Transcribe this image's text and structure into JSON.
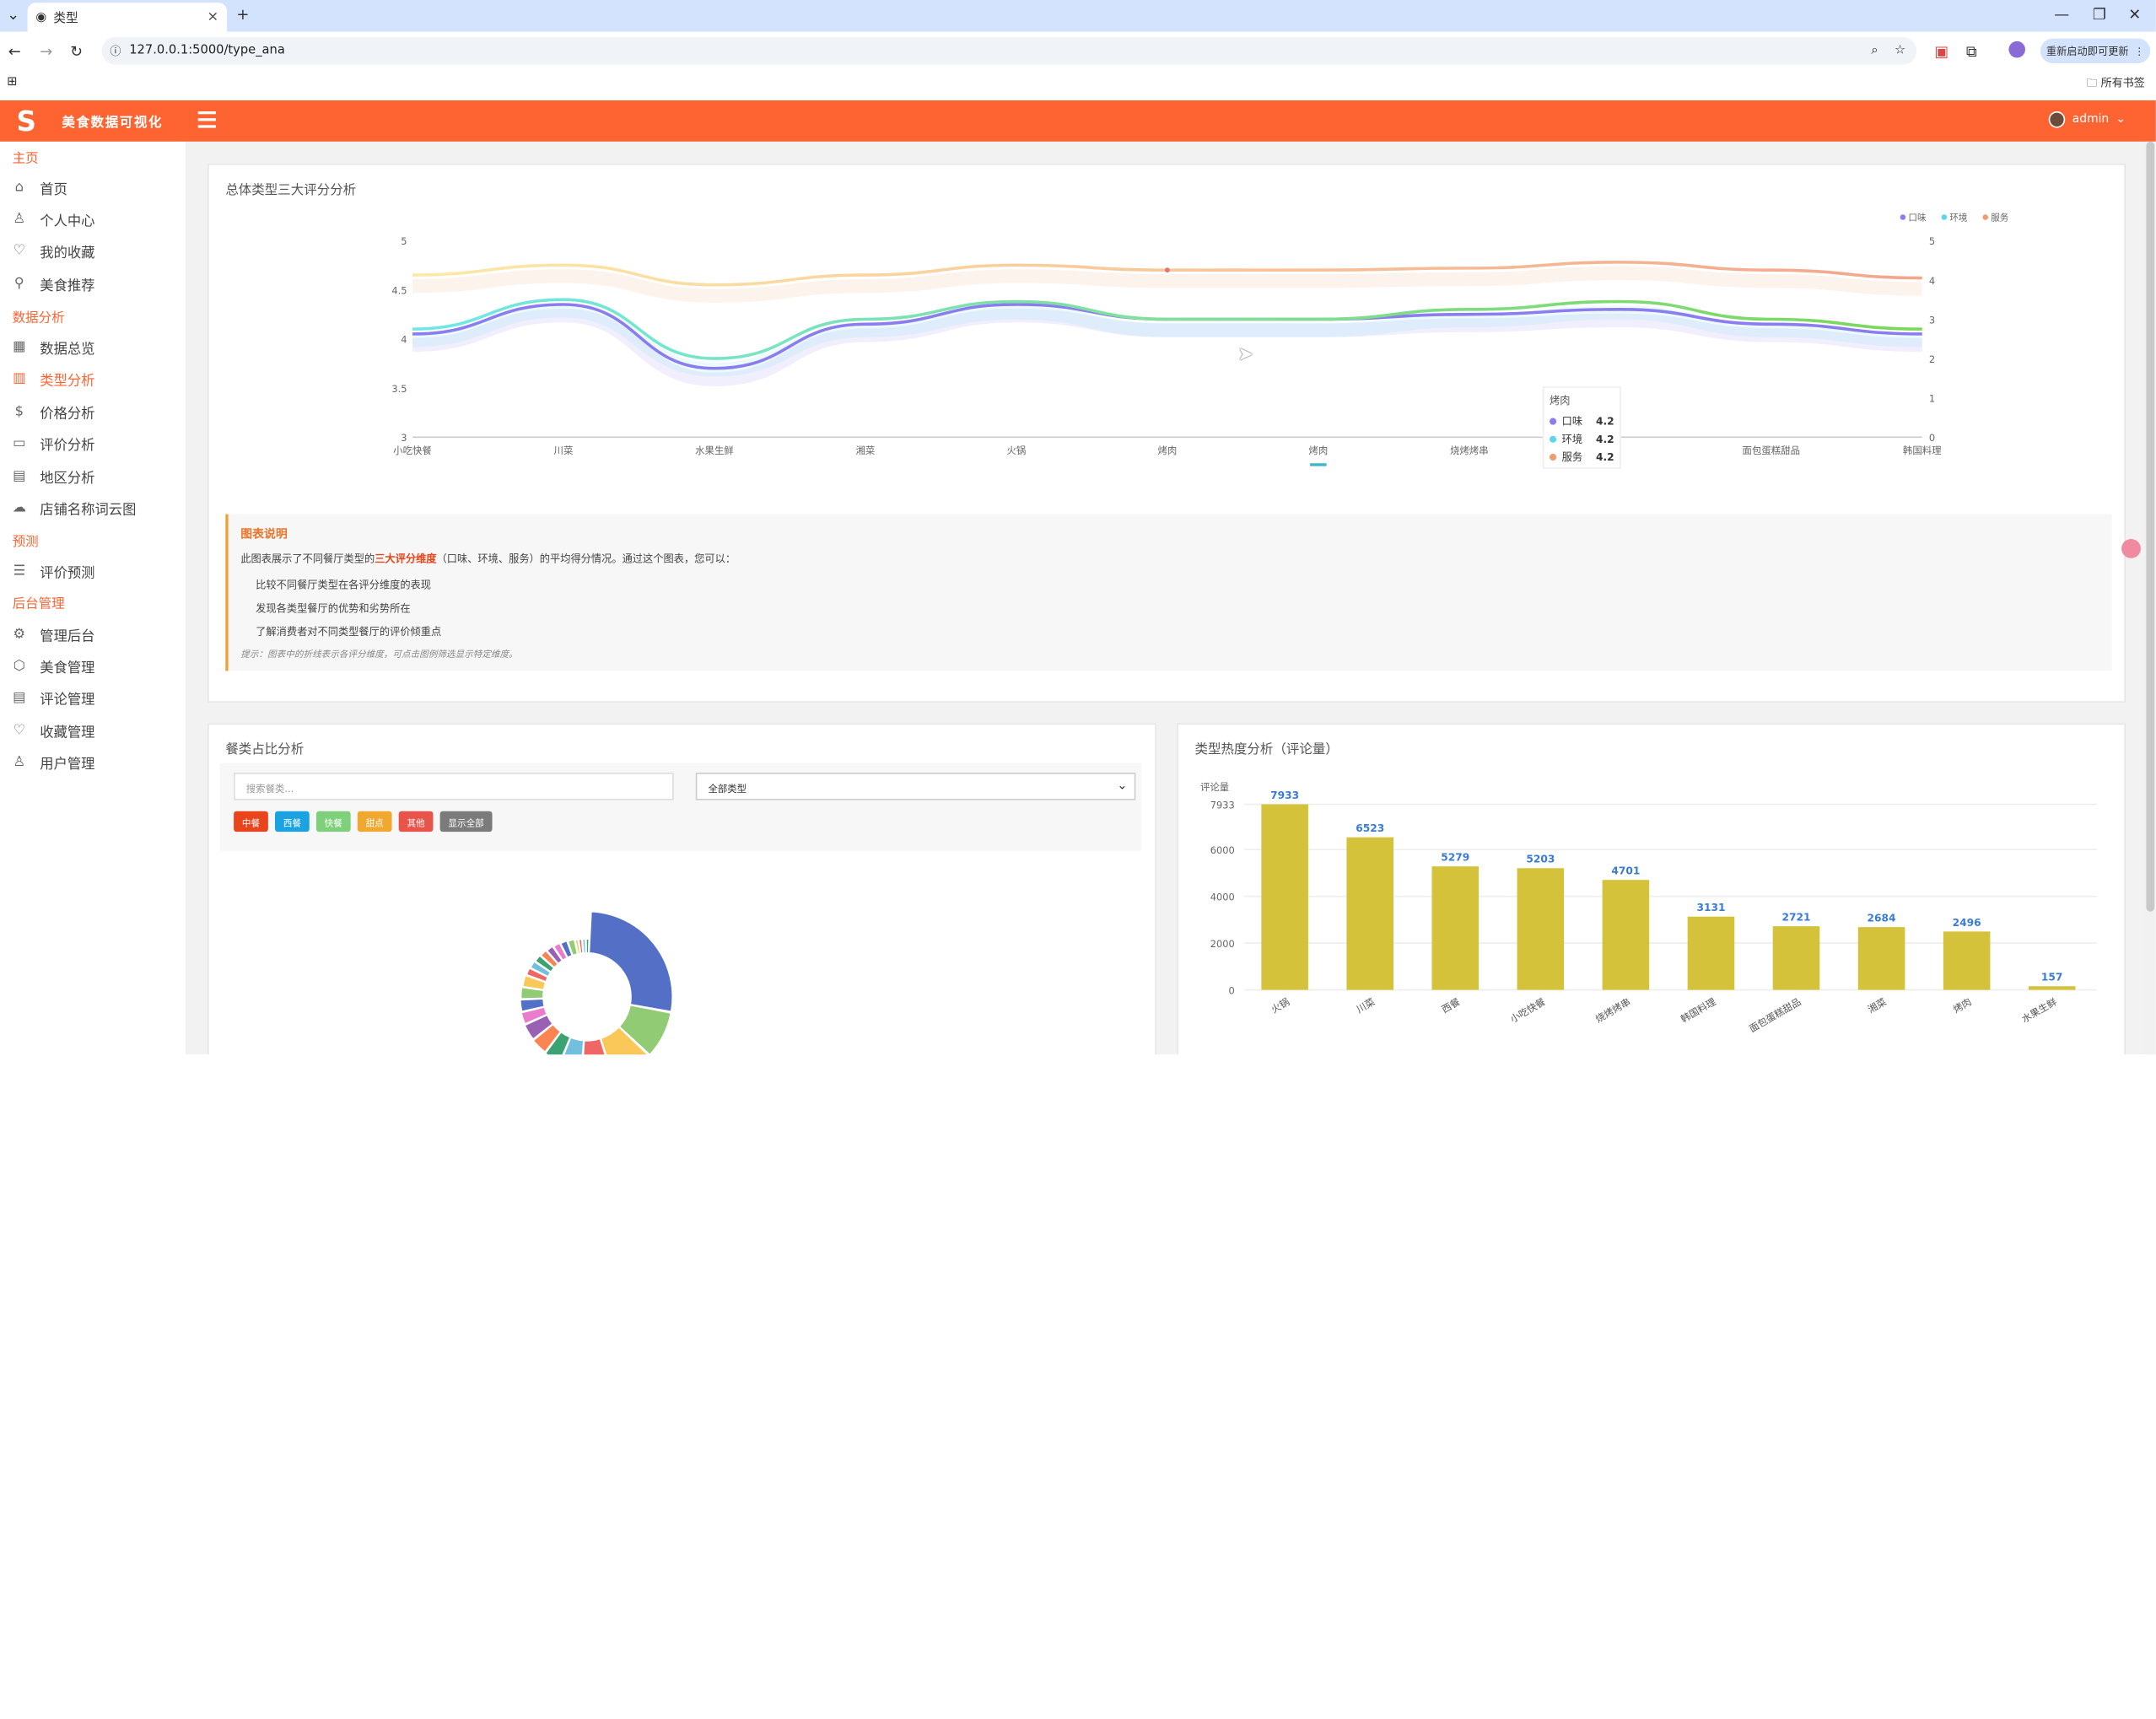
{
  "browser": {
    "tab_title": "类型",
    "url": "127.0.0.1:5000/type_ana",
    "update_btn": "重新启动即可更新",
    "bookmarks": "所有书签"
  },
  "header": {
    "brand": "美食数据可视化",
    "user": "admin"
  },
  "sidebar": {
    "sections": [
      {
        "title": "主页",
        "items": [
          {
            "label": "首页",
            "icon": "home-icon"
          },
          {
            "label": "个人中心",
            "icon": "user-icon"
          },
          {
            "label": "我的收藏",
            "icon": "heart-icon"
          },
          {
            "label": "美食推荐",
            "icon": "bulb-icon"
          }
        ]
      },
      {
        "title": "数据分析",
        "items": [
          {
            "label": "数据总览",
            "icon": "table-icon"
          },
          {
            "label": "类型分析",
            "icon": "chart-icon",
            "active": true
          },
          {
            "label": "价格分析",
            "icon": "dollar-icon"
          },
          {
            "label": "评价分析",
            "icon": "comment-icon"
          },
          {
            "label": "地区分析",
            "icon": "map-icon"
          },
          {
            "label": "店铺名称词云图",
            "icon": "cloud-icon"
          }
        ]
      },
      {
        "title": "预测",
        "items": [
          {
            "label": "评价预测",
            "icon": "list-icon"
          }
        ]
      },
      {
        "title": "后台管理",
        "items": [
          {
            "label": "管理后台",
            "icon": "gear-icon"
          },
          {
            "label": "美食管理",
            "icon": "box-icon"
          },
          {
            "label": "评论管理",
            "icon": "chat-icon"
          },
          {
            "label": "收藏管理",
            "icon": "heart-pulse-icon"
          },
          {
            "label": "用户管理",
            "icon": "person-icon"
          }
        ]
      }
    ]
  },
  "score_card": {
    "title": "总体类型三大评分分析",
    "tooltip": {
      "title": "烤肉",
      "rows": [
        {
          "name": "口味",
          "value": "4.2",
          "color": "#8b7cf0"
        },
        {
          "name": "环境",
          "value": "4.2",
          "color": "#5cd6f0"
        },
        {
          "name": "服务",
          "value": "4.2",
          "color": "#f29b6b"
        }
      ]
    },
    "note": {
      "title": "图表说明",
      "lead": "此图表展示了不同餐厅类型的",
      "lead_bold": "三大评分维度",
      "lead_tail": "（口味、环境、服务）的平均得分情况。通过这个图表，您可以：",
      "items": [
        "比较不同餐厅类型在各评分维度的表现",
        "发现各类型餐厅的优势和劣势所在",
        "了解消费者对不同类型餐厅的评价倾重点"
      ],
      "hint": "提示：图表中的折线表示各评分维度，可点击图例筛选显示特定维度。"
    }
  },
  "share_card": {
    "title": "餐类占比分析",
    "search_placeholder": "搜索餐类...",
    "select_value": "全部类型",
    "filters": [
      {
        "label": "中餐",
        "color": "#e8451c"
      },
      {
        "label": "西餐",
        "color": "#1aa3e0"
      },
      {
        "label": "快餐",
        "color": "#7ed07a"
      },
      {
        "label": "甜点",
        "color": "#f0a830"
      },
      {
        "label": "其他",
        "color": "#e8534a"
      },
      {
        "label": "显示全部",
        "color": "#7b7b7b"
      }
    ]
  },
  "heat_card": {
    "title": "类型热度分析（评论量）"
  },
  "chart_data": [
    {
      "type": "line",
      "categories": [
        "小吃快餐",
        "川菜",
        "水果生鲜",
        "湘菜",
        "火锅",
        "烤肉",
        "烤肉",
        "烧烤烤串",
        "",
        "面包蛋糕甜品",
        "韩国料理"
      ],
      "visible_tick_labels": [
        "小吃快餐",
        "川菜",
        "水果生鲜",
        "湘菜",
        "火锅",
        "烤肉",
        "烤肉",
        "烧烤烤串",
        "面包蛋糕甜品",
        "韩国料理"
      ],
      "series": [
        {
          "name": "口味",
          "color": "#8b7cf0",
          "values": [
            4.05,
            4.35,
            3.7,
            4.15,
            4.35,
            4.2,
            4.2,
            4.25,
            4.3,
            4.15,
            4.05
          ]
        },
        {
          "name": "环境",
          "color": "#5cd6f0",
          "values": [
            4.1,
            4.4,
            3.8,
            4.2,
            4.38,
            4.2,
            4.2,
            4.3,
            4.38,
            4.2,
            4.1
          ]
        },
        {
          "name": "服务",
          "color": "#f29b6b",
          "values": [
            4.65,
            4.75,
            4.55,
            4.65,
            4.75,
            4.7,
            4.7,
            4.72,
            4.78,
            4.7,
            4.62
          ]
        }
      ],
      "ylim": [
        3,
        5
      ],
      "yticks": [
        "3",
        "3.5",
        "4",
        "4.5",
        "5"
      ],
      "y2ticks": [
        "0",
        "1",
        "2",
        "3",
        "4",
        "5"
      ],
      "legend": "top-right"
    },
    {
      "type": "pie",
      "values": [
        27,
        9,
        8,
        6,
        5,
        4,
        4,
        4,
        3,
        3,
        3,
        3,
        2,
        2,
        2,
        2,
        2,
        2,
        2,
        2,
        1,
        1,
        1,
        1
      ],
      "colors": [
        "#5470c6",
        "#91cc75",
        "#fac858",
        "#ee6666",
        "#73c0de",
        "#3ba272",
        "#fc8452",
        "#9a60b4",
        "#ea7ccc",
        "#5470c6",
        "#91cc75",
        "#fac858",
        "#ee6666",
        "#73c0de",
        "#3ba272",
        "#fc8452",
        "#9a60b4",
        "#ea7ccc",
        "#5470c6",
        "#91cc75",
        "#fac858",
        "#ee6666",
        "#73c0de",
        "#3ba272"
      ]
    },
    {
      "type": "bar",
      "ylabel": "评论量",
      "categories": [
        "火锅",
        "川菜",
        "西餐",
        "小吃快餐",
        "烧烤烤串",
        "韩国料理",
        "面包蛋糕甜品",
        "湘菜",
        "烤肉",
        "水果生鲜"
      ],
      "values": [
        7933,
        6523,
        5279,
        5203,
        4701,
        3131,
        2721,
        2684,
        2496,
        157
      ],
      "labels": [
        "7933",
        "6523",
        "5279",
        "5203",
        "4701",
        "3131",
        "2721",
        "2684",
        "2496",
        "157"
      ],
      "yticks": [
        "0",
        "2000",
        "4000",
        "6000",
        "7933"
      ],
      "ylim": [
        0,
        7933
      ],
      "color": "#d4c33a"
    }
  ]
}
